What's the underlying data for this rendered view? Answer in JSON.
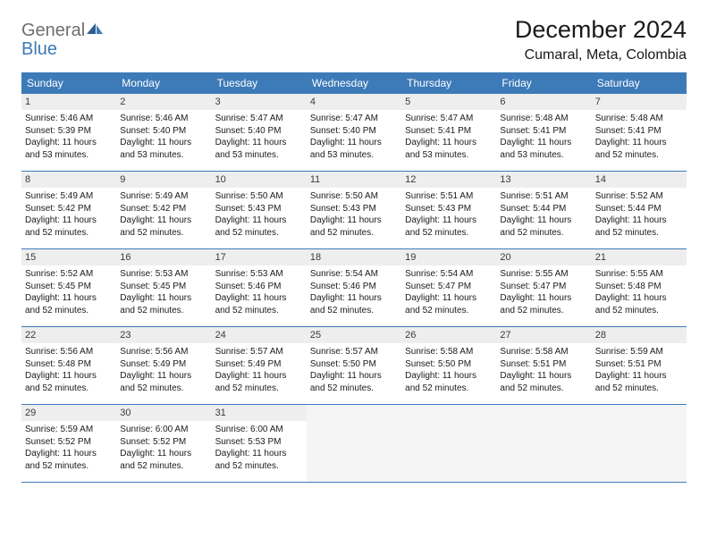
{
  "logo": {
    "word1": "General",
    "word2": "Blue"
  },
  "title": "December 2024",
  "location": "Cumaral, Meta, Colombia",
  "colors": {
    "header_bg": "#3d7ab8",
    "header_text": "#ffffff",
    "date_bg": "#eeeeee",
    "border": "#3d7ab8",
    "body_text": "#1a1a1a",
    "logo_gray": "#6e6e6e",
    "logo_blue": "#3d7ab8",
    "empty_bg": "#f5f5f5"
  },
  "day_headers": [
    "Sunday",
    "Monday",
    "Tuesday",
    "Wednesday",
    "Thursday",
    "Friday",
    "Saturday"
  ],
  "weeks": [
    [
      {
        "n": "1",
        "sr": "Sunrise: 5:46 AM",
        "ss": "Sunset: 5:39 PM",
        "d1": "Daylight: 11 hours",
        "d2": "and 53 minutes."
      },
      {
        "n": "2",
        "sr": "Sunrise: 5:46 AM",
        "ss": "Sunset: 5:40 PM",
        "d1": "Daylight: 11 hours",
        "d2": "and 53 minutes."
      },
      {
        "n": "3",
        "sr": "Sunrise: 5:47 AM",
        "ss": "Sunset: 5:40 PM",
        "d1": "Daylight: 11 hours",
        "d2": "and 53 minutes."
      },
      {
        "n": "4",
        "sr": "Sunrise: 5:47 AM",
        "ss": "Sunset: 5:40 PM",
        "d1": "Daylight: 11 hours",
        "d2": "and 53 minutes."
      },
      {
        "n": "5",
        "sr": "Sunrise: 5:47 AM",
        "ss": "Sunset: 5:41 PM",
        "d1": "Daylight: 11 hours",
        "d2": "and 53 minutes."
      },
      {
        "n": "6",
        "sr": "Sunrise: 5:48 AM",
        "ss": "Sunset: 5:41 PM",
        "d1": "Daylight: 11 hours",
        "d2": "and 53 minutes."
      },
      {
        "n": "7",
        "sr": "Sunrise: 5:48 AM",
        "ss": "Sunset: 5:41 PM",
        "d1": "Daylight: 11 hours",
        "d2": "and 52 minutes."
      }
    ],
    [
      {
        "n": "8",
        "sr": "Sunrise: 5:49 AM",
        "ss": "Sunset: 5:42 PM",
        "d1": "Daylight: 11 hours",
        "d2": "and 52 minutes."
      },
      {
        "n": "9",
        "sr": "Sunrise: 5:49 AM",
        "ss": "Sunset: 5:42 PM",
        "d1": "Daylight: 11 hours",
        "d2": "and 52 minutes."
      },
      {
        "n": "10",
        "sr": "Sunrise: 5:50 AM",
        "ss": "Sunset: 5:43 PM",
        "d1": "Daylight: 11 hours",
        "d2": "and 52 minutes."
      },
      {
        "n": "11",
        "sr": "Sunrise: 5:50 AM",
        "ss": "Sunset: 5:43 PM",
        "d1": "Daylight: 11 hours",
        "d2": "and 52 minutes."
      },
      {
        "n": "12",
        "sr": "Sunrise: 5:51 AM",
        "ss": "Sunset: 5:43 PM",
        "d1": "Daylight: 11 hours",
        "d2": "and 52 minutes."
      },
      {
        "n": "13",
        "sr": "Sunrise: 5:51 AM",
        "ss": "Sunset: 5:44 PM",
        "d1": "Daylight: 11 hours",
        "d2": "and 52 minutes."
      },
      {
        "n": "14",
        "sr": "Sunrise: 5:52 AM",
        "ss": "Sunset: 5:44 PM",
        "d1": "Daylight: 11 hours",
        "d2": "and 52 minutes."
      }
    ],
    [
      {
        "n": "15",
        "sr": "Sunrise: 5:52 AM",
        "ss": "Sunset: 5:45 PM",
        "d1": "Daylight: 11 hours",
        "d2": "and 52 minutes."
      },
      {
        "n": "16",
        "sr": "Sunrise: 5:53 AM",
        "ss": "Sunset: 5:45 PM",
        "d1": "Daylight: 11 hours",
        "d2": "and 52 minutes."
      },
      {
        "n": "17",
        "sr": "Sunrise: 5:53 AM",
        "ss": "Sunset: 5:46 PM",
        "d1": "Daylight: 11 hours",
        "d2": "and 52 minutes."
      },
      {
        "n": "18",
        "sr": "Sunrise: 5:54 AM",
        "ss": "Sunset: 5:46 PM",
        "d1": "Daylight: 11 hours",
        "d2": "and 52 minutes."
      },
      {
        "n": "19",
        "sr": "Sunrise: 5:54 AM",
        "ss": "Sunset: 5:47 PM",
        "d1": "Daylight: 11 hours",
        "d2": "and 52 minutes."
      },
      {
        "n": "20",
        "sr": "Sunrise: 5:55 AM",
        "ss": "Sunset: 5:47 PM",
        "d1": "Daylight: 11 hours",
        "d2": "and 52 minutes."
      },
      {
        "n": "21",
        "sr": "Sunrise: 5:55 AM",
        "ss": "Sunset: 5:48 PM",
        "d1": "Daylight: 11 hours",
        "d2": "and 52 minutes."
      }
    ],
    [
      {
        "n": "22",
        "sr": "Sunrise: 5:56 AM",
        "ss": "Sunset: 5:48 PM",
        "d1": "Daylight: 11 hours",
        "d2": "and 52 minutes."
      },
      {
        "n": "23",
        "sr": "Sunrise: 5:56 AM",
        "ss": "Sunset: 5:49 PM",
        "d1": "Daylight: 11 hours",
        "d2": "and 52 minutes."
      },
      {
        "n": "24",
        "sr": "Sunrise: 5:57 AM",
        "ss": "Sunset: 5:49 PM",
        "d1": "Daylight: 11 hours",
        "d2": "and 52 minutes."
      },
      {
        "n": "25",
        "sr": "Sunrise: 5:57 AM",
        "ss": "Sunset: 5:50 PM",
        "d1": "Daylight: 11 hours",
        "d2": "and 52 minutes."
      },
      {
        "n": "26",
        "sr": "Sunrise: 5:58 AM",
        "ss": "Sunset: 5:50 PM",
        "d1": "Daylight: 11 hours",
        "d2": "and 52 minutes."
      },
      {
        "n": "27",
        "sr": "Sunrise: 5:58 AM",
        "ss": "Sunset: 5:51 PM",
        "d1": "Daylight: 11 hours",
        "d2": "and 52 minutes."
      },
      {
        "n": "28",
        "sr": "Sunrise: 5:59 AM",
        "ss": "Sunset: 5:51 PM",
        "d1": "Daylight: 11 hours",
        "d2": "and 52 minutes."
      }
    ],
    [
      {
        "n": "29",
        "sr": "Sunrise: 5:59 AM",
        "ss": "Sunset: 5:52 PM",
        "d1": "Daylight: 11 hours",
        "d2": "and 52 minutes."
      },
      {
        "n": "30",
        "sr": "Sunrise: 6:00 AM",
        "ss": "Sunset: 5:52 PM",
        "d1": "Daylight: 11 hours",
        "d2": "and 52 minutes."
      },
      {
        "n": "31",
        "sr": "Sunrise: 6:00 AM",
        "ss": "Sunset: 5:53 PM",
        "d1": "Daylight: 11 hours",
        "d2": "and 52 minutes."
      },
      null,
      null,
      null,
      null
    ]
  ]
}
